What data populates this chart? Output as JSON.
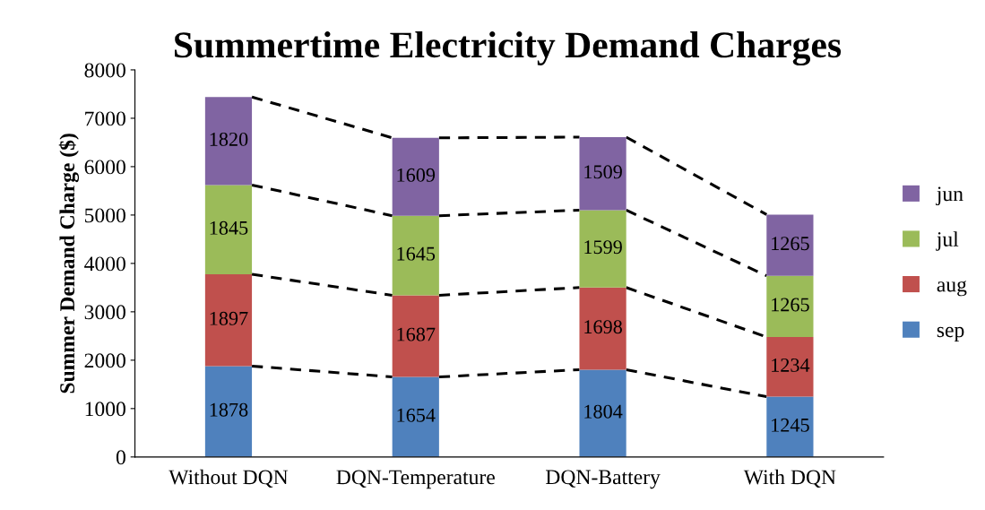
{
  "chart_data": {
    "type": "bar",
    "title": "Summertime Electricity Demand Charges",
    "ylabel": "Summer Demand Charge ($)",
    "categories": [
      "Without DQN",
      "DQN-Temperature",
      "DQN-Battery",
      "With DQN"
    ],
    "series": [
      {
        "name": "sep",
        "color": "#4f81bd",
        "values": [
          1878,
          1654,
          1804,
          1245
        ]
      },
      {
        "name": "aug",
        "color": "#c0504d",
        "values": [
          1897,
          1687,
          1698,
          1234
        ]
      },
      {
        "name": "jul",
        "color": "#9bbb59",
        "values": [
          1845,
          1645,
          1599,
          1265
        ]
      },
      {
        "name": "jun",
        "color": "#8064a2",
        "values": [
          1820,
          1609,
          1509,
          1265
        ]
      }
    ],
    "stacked": true,
    "ylim": [
      0,
      8000
    ],
    "yticks": [
      0,
      1000,
      2000,
      3000,
      4000,
      5000,
      6000,
      7000,
      8000
    ],
    "data_labels": true,
    "grid": false,
    "legend": "right",
    "line_style": "dashed"
  }
}
